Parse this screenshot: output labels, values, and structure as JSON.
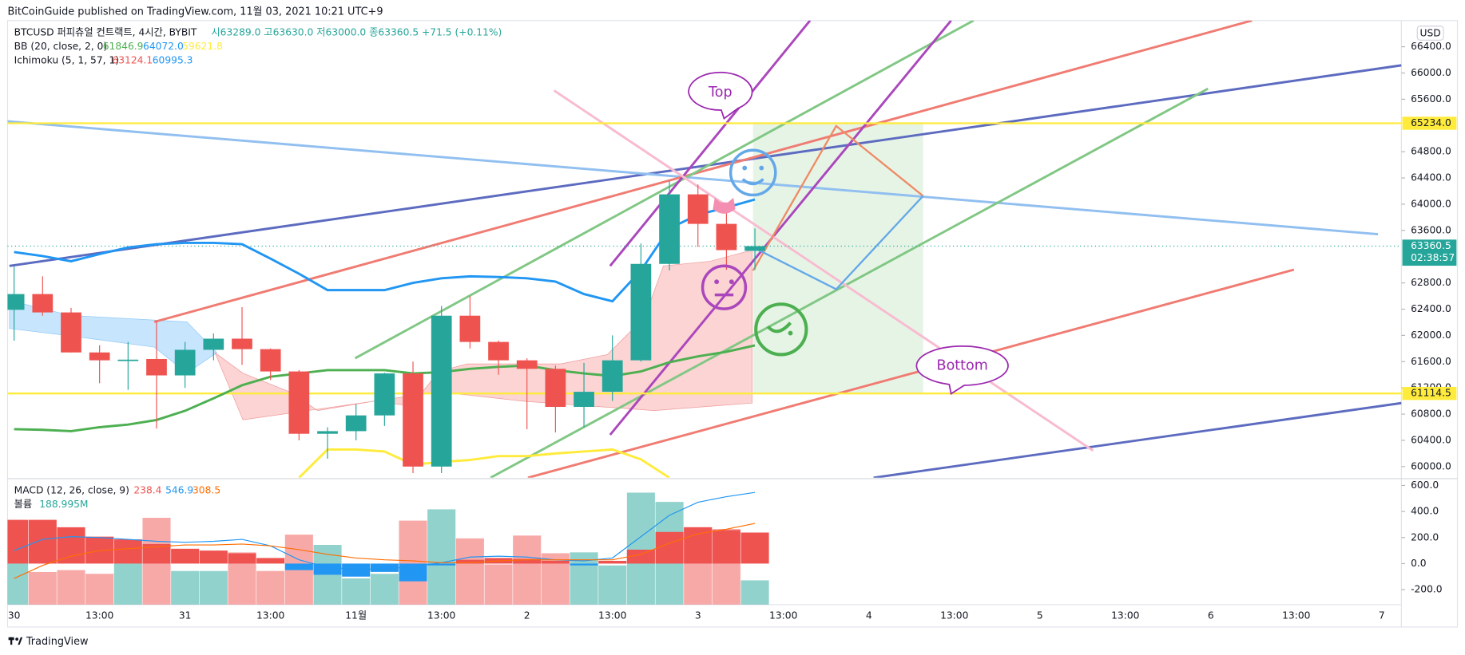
{
  "chart_data": {
    "type": "candlestick",
    "published": "BitCoinGuide published on TradingView.com, 11월 03, 2021 10:21 UTC+9",
    "symbol": "BTCUSD 퍼피츄얼 컨트랙트, 4시간, BYBIT",
    "ohlc_legend": "시63289.0 고63630.0 저63000.0 종63360.5 +71.5 (+0.11%)",
    "bb_legend": {
      "name": "BB (20, close, 2, 0)",
      "values": [
        "61846.9",
        "64072.0",
        "59621.8"
      ]
    },
    "ichimoku_legend": {
      "name": "Ichimoku (5, 1, 57, 1)",
      "values": [
        "63124.1",
        "60995.3"
      ]
    },
    "macd_legend": {
      "name": "MACD (12, 26, close, 9)",
      "values": [
        "238.4",
        "546.9",
        "308.5"
      ]
    },
    "volume_legend": {
      "name": "볼륨",
      "value": "188.995M"
    },
    "currency": "USD",
    "annotations": [
      "Top",
      "Bottom"
    ],
    "footer": "TradingView",
    "up_color": "#26a69a",
    "down_color": "#ef5350",
    "ylim": [
      59830,
      66800
    ],
    "yticks": [
      {
        "value": 66400,
        "label": "66400.0"
      },
      {
        "value": 66000,
        "label": "66000.0"
      },
      {
        "value": 65600,
        "label": "65600.0"
      },
      {
        "value": 64800,
        "label": "64800.0"
      },
      {
        "value": 64400,
        "label": "64400.0"
      },
      {
        "value": 64000,
        "label": "64000.0"
      },
      {
        "value": 63600,
        "label": "63600.0"
      },
      {
        "value": 62800,
        "label": "62800.0"
      },
      {
        "value": 62400,
        "label": "62400.0"
      },
      {
        "value": 62000,
        "label": "62000.0"
      },
      {
        "value": 61600,
        "label": "61600.0"
      },
      {
        "value": 61200,
        "label": "61200.0"
      },
      {
        "value": 60800,
        "label": "60800.0"
      },
      {
        "value": 60400,
        "label": "60400.0"
      },
      {
        "value": 60000,
        "label": "60000.0"
      }
    ],
    "xticks": [
      "30",
      "13:00",
      "31",
      "13:00",
      "11월",
      "13:00",
      "2",
      "13:00",
      "3",
      "13:00",
      "4",
      "13:00",
      "5",
      "13:00",
      "6",
      "13:00",
      "7"
    ],
    "candles": {
      "open": [
        62390,
        62630,
        62350,
        61740,
        61620,
        61640,
        61390,
        61780,
        61950,
        61790,
        61450,
        60500,
        60540,
        60780,
        61420,
        60000,
        62300,
        61900,
        61620,
        61490,
        60910,
        61140,
        61620,
        63090,
        64150,
        63700,
        63289
      ],
      "high": [
        63050,
        62900,
        62420,
        61850,
        61900,
        62220,
        61900,
        62030,
        62430,
        61800,
        61470,
        60600,
        60950,
        61430,
        61600,
        62450,
        62600,
        61920,
        61650,
        61540,
        61580,
        62000,
        63400,
        64350,
        64300,
        63900,
        63630
      ],
      "low": [
        61920,
        62300,
        61740,
        61270,
        61170,
        60580,
        61200,
        61620,
        61550,
        61320,
        60400,
        60120,
        60400,
        60620,
        59900,
        59900,
        61800,
        61400,
        60570,
        60520,
        60600,
        61000,
        61600,
        62990,
        63350,
        63000,
        63000
      ],
      "close": [
        62630,
        62350,
        61740,
        61620,
        61630,
        61390,
        61780,
        61950,
        61790,
        61450,
        60500,
        60540,
        60780,
        61420,
        60000,
        62300,
        61900,
        61620,
        61490,
        60910,
        61140,
        61620,
        63090,
        64150,
        63700,
        63300,
        63360.5
      ]
    },
    "series": [
      {
        "name": "BB upper",
        "color": "#2196f3",
        "values": [
          63270,
          63210,
          63130,
          63240,
          63340,
          63390,
          63410,
          63410,
          63390,
          63170,
          62940,
          62690,
          62690,
          62690,
          62800,
          62870,
          62900,
          62890,
          62870,
          62820,
          62630,
          62520,
          62990,
          63630,
          63840,
          63950,
          64072
        ]
      },
      {
        "name": "BB basis",
        "color": "#4caf50",
        "values": [
          60570,
          60560,
          60540,
          60600,
          60640,
          60710,
          60850,
          61040,
          61240,
          61370,
          61420,
          61470,
          61470,
          61470,
          61420,
          61440,
          61490,
          61520,
          61540,
          61470,
          61420,
          61380,
          61450,
          61590,
          61680,
          61750,
          61847
        ]
      },
      {
        "name": "BB lower",
        "color": "#ffeb3b",
        "values": [
          null,
          null,
          null,
          null,
          null,
          null,
          null,
          null,
          null,
          null,
          59830,
          60260,
          60260,
          60230,
          60030,
          60070,
          60100,
          60160,
          60160,
          60200,
          60230,
          60260,
          60110,
          59830,
          null,
          null,
          null
        ]
      }
    ],
    "hlines": [
      {
        "value": 65234,
        "label": "65234.0",
        "color": "#ffeb3b"
      },
      {
        "value": 61114.5,
        "label": "61114.5",
        "color": "#ffeb3b"
      }
    ],
    "last_price": {
      "value": 63360.5,
      "label": "63360.5",
      "countdown": "02:38:57",
      "color": "#26a69a"
    },
    "macd": {
      "ylim": [
        -315,
        645
      ],
      "yticks": [
        {
          "value": 600,
          "label": "600.0"
        },
        {
          "value": 400,
          "label": "400.0"
        },
        {
          "value": 200,
          "label": "200.0"
        },
        {
          "value": 0,
          "label": "0.0"
        },
        {
          "value": -200,
          "label": "-200.0"
        }
      ],
      "histogram": [
        336,
        336,
        279,
        207,
        186,
        150,
        114,
        100,
        79,
        43,
        -50,
        -86,
        -100,
        -64,
        -136,
        -14,
        29,
        43,
        36,
        21,
        -14,
        21,
        107,
        243,
        279,
        257,
        238.4
      ],
      "positive_color": "#ef5350",
      "negative_color": "#2196f3",
      "macd_line": {
        "color": "#2196f3",
        "values": [
          100,
          186,
          207,
          200,
          186,
          171,
          164,
          171,
          186,
          136,
          29,
          -29,
          -43,
          -43,
          -21,
          7,
          50,
          57,
          50,
          29,
          21,
          43,
          207,
          371,
          471,
          514,
          546.9
        ]
      },
      "signal_line": {
        "color": "#ff6d00",
        "values": [
          -114,
          -14,
          57,
          100,
          114,
          129,
          143,
          143,
          150,
          136,
          107,
          71,
          43,
          29,
          21,
          7,
          7,
          21,
          29,
          29,
          29,
          29,
          71,
          157,
          229,
          264,
          308.5
        ]
      },
      "volume": [
        320,
        254,
        269,
        240,
        320,
        676,
        262,
        262,
        407,
        262,
        545,
        465,
        204,
        240,
        654,
        742,
        516,
        313,
        538,
        400,
        407,
        305,
        872,
        800,
        603,
        589,
        189
      ]
    }
  }
}
